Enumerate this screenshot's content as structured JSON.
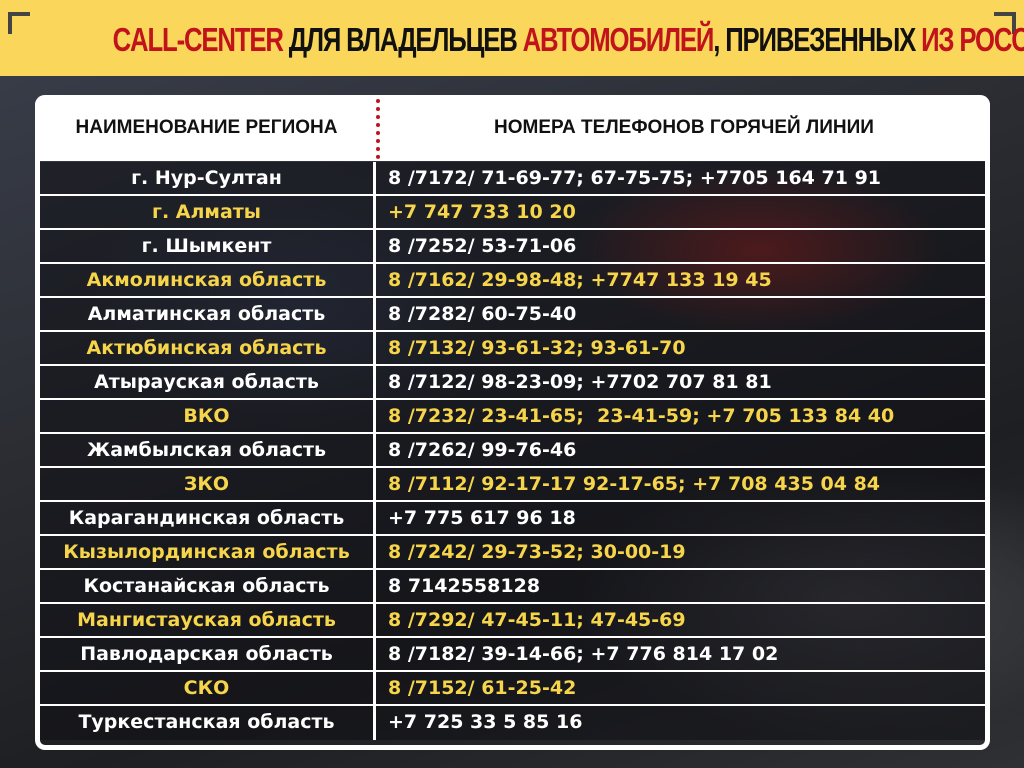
{
  "title": {
    "part1": "CALL-CENTER",
    "part2": " ДЛЯ ВЛАДЕЛЬЦЕВ ",
    "part3": "АВТОМОБИЛЕЙ",
    "part4": ", ПРИВЕЗЕННЫХ ",
    "part5": "ИЗ РОССИИ"
  },
  "colors": {
    "banner": "#fad75a",
    "accent_red": "#c0131b",
    "highlight_yellow": "#f6d54b"
  },
  "table": {
    "headers": [
      "НАИМЕНОВАНИЕ РЕГИОНА",
      "НОМЕРА ТЕЛЕФОНОВ ГОРЯЧЕЙ ЛИНИИ"
    ],
    "rows": [
      {
        "region": "г. Нур-Султан",
        "phones": "8 /7172/ 71-69-77; 67-75-75; +7705 164 71 91"
      },
      {
        "region": "г. Алматы",
        "phones": "+7 747 733 10 20"
      },
      {
        "region": "г. Шымкент",
        "phones": "8 /7252/ 53-71-06"
      },
      {
        "region": "Акмолинская область",
        "phones": "8 /7162/ 29-98-48; +7747 133 19 45"
      },
      {
        "region": "Алматинская область",
        "phones": "8 /7282/ 60-75-40"
      },
      {
        "region": "Актюбинская область",
        "phones": "8 /7132/ 93-61-32; 93-61-70"
      },
      {
        "region": "Атырауская область",
        "phones": "8 /7122/ 98-23-09; +7702 707 81 81"
      },
      {
        "region": "ВКО",
        "phones": "8 /7232/ 23-41-65;  23-41-59; +7 705 133 84 40"
      },
      {
        "region": "Жамбылская область",
        "phones": "8 /7262/ 99-76-46"
      },
      {
        "region": "ЗКО",
        "phones": "8 /7112/ 92-17-17 92-17-65; +7 708 435 04 84"
      },
      {
        "region": "Карагандинская область",
        "phones": "+7 775 617 96 18"
      },
      {
        "region": "Кызылординская область",
        "phones": "8 /7242/ 29-73-52; 30-00-19"
      },
      {
        "region": "Костанайская область",
        "phones": "8 7142558128"
      },
      {
        "region": "Мангистауская область",
        "phones": "8 /7292/ 47-45-11; 47-45-69"
      },
      {
        "region": "Павлодарская область",
        "phones": "8 /7182/ 39-14-66; +7 776 814 17 02"
      },
      {
        "region": "СКО",
        "phones": "8 /7152/ 61-25-42"
      },
      {
        "region": "Туркестанская область",
        "phones": "+7 725 33 5 85 16"
      }
    ]
  }
}
